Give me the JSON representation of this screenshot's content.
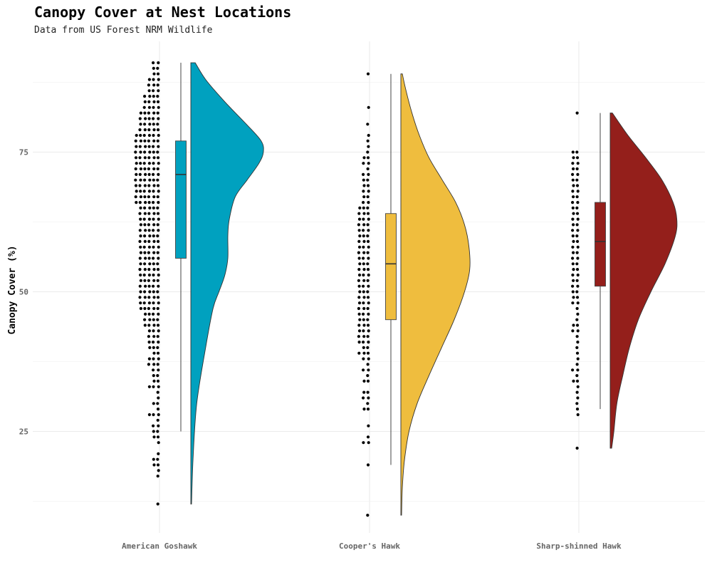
{
  "chart_data": {
    "type": "raincloud",
    "title": "Canopy Cover at Nest Locations",
    "subtitle": "Data from US Forest NRM Wildlife",
    "xlabel": "",
    "ylabel": "Canopy Cover (%)",
    "ylim": [
      8,
      95
    ],
    "yticks": [
      25,
      50,
      75
    ],
    "grid": true,
    "categories": [
      "American Goshawk",
      "Cooper's Hawk",
      "Sharp-shinned Hawk"
    ],
    "colors": [
      "#00a1bf",
      "#efbd3e",
      "#941f1b"
    ],
    "series": [
      {
        "name": "American Goshawk",
        "box": {
          "min": 25,
          "q1": 56,
          "median": 71,
          "q3": 77,
          "max": 91
        },
        "range": [
          12,
          91
        ],
        "density": [
          [
            12,
            0.01
          ],
          [
            20,
            0.03
          ],
          [
            30,
            0.08
          ],
          [
            40,
            0.2
          ],
          [
            47,
            0.3
          ],
          [
            50,
            0.38
          ],
          [
            53,
            0.46
          ],
          [
            56,
            0.5
          ],
          [
            60,
            0.5
          ],
          [
            63,
            0.52
          ],
          [
            67,
            0.6
          ],
          [
            70,
            0.76
          ],
          [
            73,
            0.92
          ],
          [
            75,
            0.98
          ],
          [
            77,
            0.95
          ],
          [
            80,
            0.75
          ],
          [
            84,
            0.46
          ],
          [
            88,
            0.2
          ],
          [
            91,
            0.06
          ]
        ],
        "points": [
          12,
          17,
          18,
          19,
          19,
          20,
          20,
          21,
          23,
          24,
          24,
          25,
          25,
          26,
          26,
          27,
          28,
          28,
          28,
          29,
          30,
          30,
          31,
          32,
          33,
          33,
          33,
          34,
          34,
          35,
          35,
          36,
          36,
          37,
          37,
          37,
          38,
          38,
          38,
          39,
          39,
          40,
          40,
          40,
          41,
          41,
          41,
          42,
          42,
          42,
          43,
          43,
          43,
          44,
          44,
          44,
          44,
          45,
          45,
          45,
          45,
          46,
          46,
          46,
          46,
          47,
          47,
          47,
          47,
          47,
          48,
          48,
          48,
          48,
          48,
          49,
          49,
          49,
          49,
          49,
          50,
          50,
          50,
          50,
          50,
          51,
          51,
          51,
          51,
          51,
          52,
          52,
          52,
          52,
          52,
          53,
          53,
          53,
          53,
          53,
          54,
          54,
          54,
          54,
          54,
          55,
          55,
          55,
          55,
          55,
          56,
          56,
          56,
          56,
          56,
          57,
          57,
          57,
          57,
          57,
          58,
          58,
          58,
          58,
          58,
          59,
          59,
          59,
          59,
          59,
          60,
          60,
          60,
          60,
          60,
          61,
          61,
          61,
          61,
          61,
          62,
          62,
          62,
          62,
          62,
          63,
          63,
          63,
          63,
          63,
          64,
          64,
          64,
          64,
          64,
          65,
          65,
          65,
          65,
          65,
          66,
          66,
          66,
          66,
          66,
          66,
          67,
          67,
          67,
          67,
          67,
          67,
          68,
          68,
          68,
          68,
          68,
          68,
          69,
          69,
          69,
          69,
          69,
          69,
          70,
          70,
          70,
          70,
          70,
          70,
          71,
          71,
          71,
          71,
          71,
          71,
          72,
          72,
          72,
          72,
          72,
          72,
          73,
          73,
          73,
          73,
          73,
          73,
          74,
          74,
          74,
          74,
          74,
          74,
          75,
          75,
          75,
          75,
          75,
          75,
          76,
          76,
          76,
          76,
          76,
          76,
          77,
          77,
          77,
          77,
          77,
          77,
          78,
          78,
          78,
          78,
          78,
          78,
          79,
          79,
          79,
          79,
          79,
          80,
          80,
          80,
          80,
          80,
          81,
          81,
          81,
          81,
          81,
          82,
          82,
          82,
          82,
          82,
          83,
          83,
          83,
          83,
          84,
          84,
          84,
          84,
          85,
          85,
          85,
          85,
          86,
          86,
          86,
          87,
          87,
          87,
          88,
          88,
          88,
          89,
          89,
          90,
          90,
          91,
          91
        ]
      },
      {
        "name": "Cooper's Hawk",
        "box": {
          "min": 19,
          "q1": 45,
          "median": 55,
          "q3": 64,
          "max": 89
        },
        "range": [
          10,
          89
        ],
        "density": [
          [
            10,
            0.01
          ],
          [
            15,
            0.02
          ],
          [
            20,
            0.05
          ],
          [
            25,
            0.11
          ],
          [
            30,
            0.22
          ],
          [
            35,
            0.38
          ],
          [
            40,
            0.55
          ],
          [
            45,
            0.72
          ],
          [
            50,
            0.86
          ],
          [
            54,
            0.93
          ],
          [
            58,
            0.92
          ],
          [
            62,
            0.86
          ],
          [
            66,
            0.74
          ],
          [
            70,
            0.56
          ],
          [
            74,
            0.38
          ],
          [
            78,
            0.25
          ],
          [
            82,
            0.15
          ],
          [
            86,
            0.07
          ],
          [
            89,
            0.02
          ]
        ],
        "points": [
          10,
          19,
          23,
          23,
          24,
          26,
          29,
          29,
          30,
          31,
          31,
          32,
          32,
          34,
          34,
          35,
          36,
          36,
          37,
          38,
          38,
          39,
          39,
          39,
          40,
          40,
          41,
          41,
          41,
          42,
          42,
          42,
          43,
          43,
          43,
          44,
          44,
          44,
          45,
          45,
          45,
          46,
          46,
          46,
          47,
          47,
          47,
          48,
          48,
          48,
          49,
          49,
          49,
          50,
          50,
          50,
          51,
          51,
          51,
          52,
          52,
          52,
          53,
          53,
          53,
          54,
          54,
          54,
          55,
          55,
          55,
          56,
          56,
          56,
          57,
          57,
          57,
          58,
          58,
          58,
          59,
          59,
          59,
          60,
          60,
          60,
          61,
          61,
          61,
          62,
          62,
          62,
          63,
          63,
          63,
          64,
          64,
          64,
          65,
          65,
          65,
          66,
          66,
          67,
          67,
          68,
          68,
          69,
          69,
          70,
          70,
          71,
          71,
          72,
          73,
          73,
          74,
          74,
          75,
          76,
          77,
          78,
          80,
          83,
          89
        ]
      },
      {
        "name": "Sharp-shinned Hawk",
        "box": {
          "min": 29,
          "q1": 51,
          "median": 59,
          "q3": 66,
          "max": 82
        },
        "range": [
          22,
          82
        ],
        "density": [
          [
            22,
            0.02
          ],
          [
            25,
            0.05
          ],
          [
            30,
            0.09
          ],
          [
            35,
            0.17
          ],
          [
            40,
            0.26
          ],
          [
            45,
            0.38
          ],
          [
            50,
            0.55
          ],
          [
            55,
            0.74
          ],
          [
            60,
            0.88
          ],
          [
            63,
            0.9
          ],
          [
            66,
            0.85
          ],
          [
            70,
            0.7
          ],
          [
            74,
            0.48
          ],
          [
            78,
            0.24
          ],
          [
            82,
            0.03
          ]
        ],
        "points": [
          22,
          28,
          29,
          30,
          31,
          32,
          33,
          34,
          34,
          35,
          36,
          36,
          37,
          38,
          39,
          40,
          41,
          42,
          43,
          43,
          44,
          44,
          45,
          46,
          47,
          48,
          48,
          49,
          49,
          50,
          50,
          51,
          51,
          52,
          52,
          53,
          53,
          54,
          54,
          55,
          55,
          56,
          56,
          57,
          57,
          58,
          58,
          59,
          59,
          60,
          60,
          61,
          61,
          62,
          62,
          63,
          63,
          64,
          64,
          65,
          65,
          66,
          66,
          67,
          67,
          68,
          68,
          69,
          69,
          70,
          70,
          71,
          71,
          72,
          72,
          73,
          73,
          74,
          74,
          75,
          75,
          82
        ]
      }
    ]
  }
}
